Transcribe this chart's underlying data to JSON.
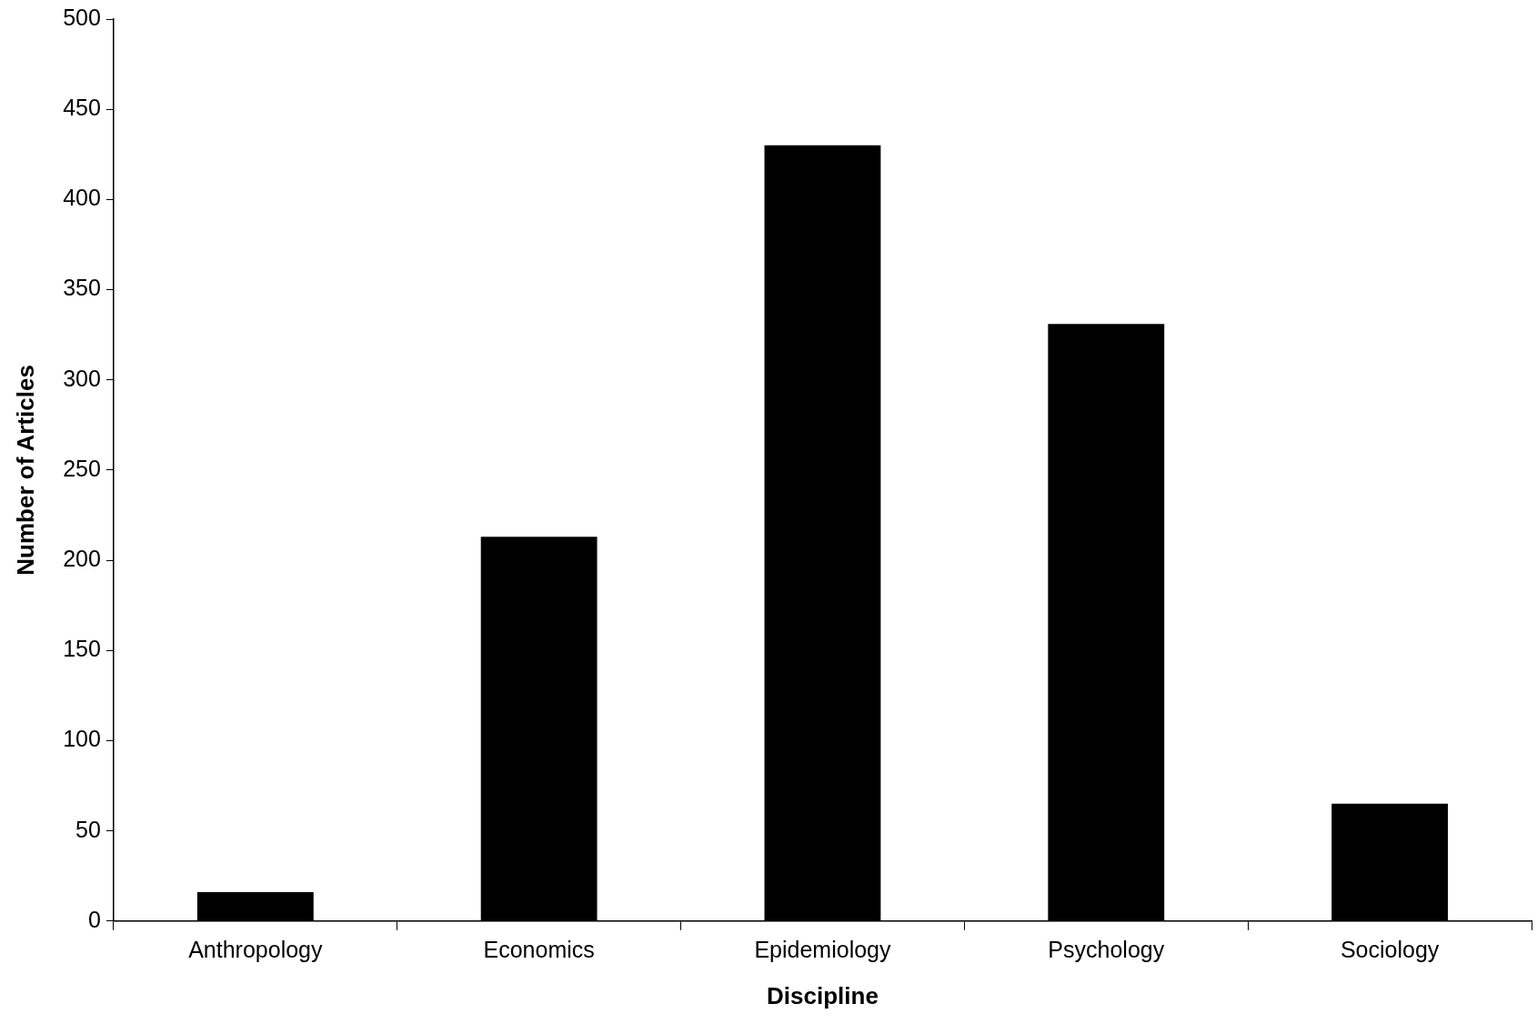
{
  "chart_data": {
    "type": "bar",
    "xlabel": "Discipline",
    "ylabel": "Number of Articles",
    "categories": [
      "Anthropology",
      "Economics",
      "Epidemiology",
      "Psychology",
      "Sociology"
    ],
    "values": [
      16,
      213,
      430,
      331,
      65
    ],
    "color": "#000000",
    "ylim": [
      0,
      500
    ],
    "yticks": [
      0,
      50,
      100,
      150,
      200,
      250,
      300,
      350,
      400,
      450,
      500
    ],
    "grid": false,
    "legend": false
  }
}
